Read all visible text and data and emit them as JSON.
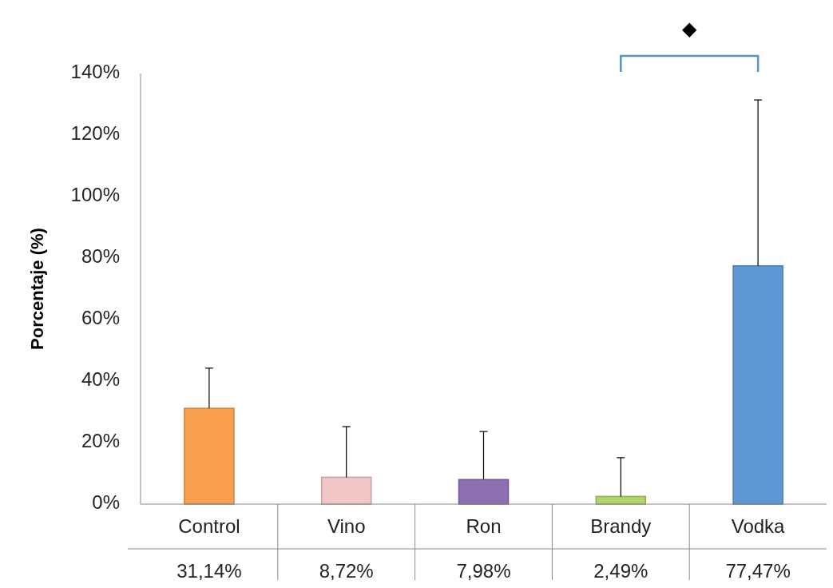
{
  "chart_data": {
    "type": "bar",
    "ylabel": "Porcentaje (%)",
    "categories": [
      "Control",
      "Vino",
      "Ron",
      "Brandy",
      "Vodka"
    ],
    "values": [
      31.14,
      8.72,
      7.98,
      2.49,
      77.47
    ],
    "colors": [
      "#f9a04f",
      "#f2c6c6",
      "#8e6fb0",
      "#b3d46a",
      "#5e97d4"
    ],
    "errors": [
      [
        31.14,
        44.2
      ],
      [
        8.72,
        25.2
      ],
      [
        7.98,
        23.6
      ],
      [
        2.49,
        15.1
      ],
      [
        77.47,
        131.4
      ]
    ],
    "value_labels": [
      "31,14%",
      "8,72%",
      "7,98%",
      "2,49%",
      "77,47%"
    ],
    "ylim": [
      0,
      140
    ],
    "yticks": [
      {
        "value": 0,
        "label": "0%"
      },
      {
        "value": 20,
        "label": "20%"
      },
      {
        "value": 40,
        "label": "40%"
      },
      {
        "value": 60,
        "label": "60%"
      },
      {
        "value": 80,
        "label": "80%"
      },
      {
        "value": 100,
        "label": "100%"
      },
      {
        "value": 120,
        "label": "120%"
      },
      {
        "value": 140,
        "label": "140%"
      }
    ],
    "annotations": [
      "◆"
    ],
    "grid": false
  }
}
